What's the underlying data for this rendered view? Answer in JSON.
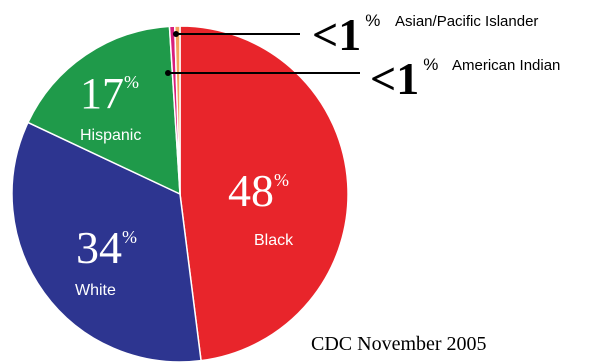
{
  "chart_data": {
    "type": "pie",
    "categories": [
      "Black",
      "White",
      "Hispanic",
      "American Indian",
      "Asian/Pacific Islander"
    ],
    "values": [
      48,
      34,
      17,
      0.5,
      0.5
    ],
    "value_labels": [
      "48",
      "34",
      "17",
      "<1",
      "<1"
    ],
    "percent_sign": "%",
    "colors": [
      "#e8252b",
      "#2d3590",
      "#1f9a4a",
      "#d81e7c",
      "#f3a25c"
    ],
    "source": "CDC November 2005"
  }
}
